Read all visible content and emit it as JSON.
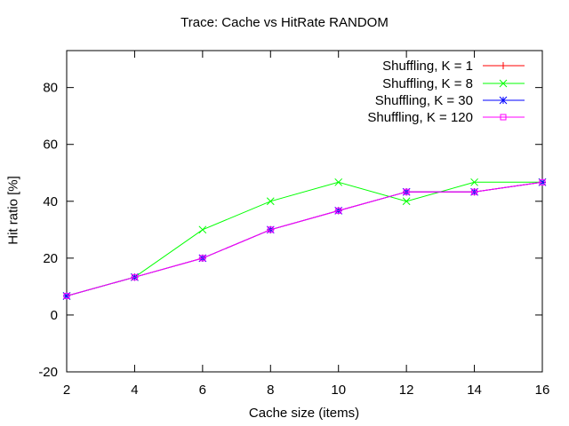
{
  "chart_data": {
    "type": "line",
    "title": "Trace: Cache vs HitRate RANDOM",
    "xlabel": "Cache size (items)",
    "ylabel": "Hit ratio [%]",
    "xlim": [
      2,
      16
    ],
    "ylim": [
      -20,
      93
    ],
    "x_ticks": [
      2,
      4,
      6,
      8,
      10,
      12,
      14,
      16
    ],
    "y_ticks": [
      -20,
      0,
      20,
      40,
      60,
      80
    ],
    "grid": false,
    "legend_position": "top-right",
    "x": [
      2,
      4,
      6,
      8,
      10,
      12,
      14,
      16
    ],
    "series": [
      {
        "name": "Shuffling, K = 1",
        "color": "#ff0000",
        "marker": "plus",
        "values": [
          6.7,
          13.3,
          20.0,
          30.0,
          36.7,
          43.3,
          43.3,
          46.7
        ]
      },
      {
        "name": "Shuffling, K = 8",
        "color": "#00ff00",
        "marker": "cross",
        "values": [
          6.7,
          13.3,
          30.0,
          40.0,
          46.7,
          40.0,
          46.7,
          46.7
        ]
      },
      {
        "name": "Shuffling, K = 30",
        "color": "#0000ff",
        "marker": "star",
        "values": [
          6.7,
          13.3,
          20.0,
          30.0,
          36.7,
          43.3,
          43.3,
          46.7
        ]
      },
      {
        "name": "Shuffling, K = 120",
        "color": "#ff00ff",
        "marker": "square",
        "values": [
          6.7,
          13.3,
          20.0,
          30.0,
          36.7,
          43.3,
          43.3,
          46.7
        ]
      }
    ]
  }
}
